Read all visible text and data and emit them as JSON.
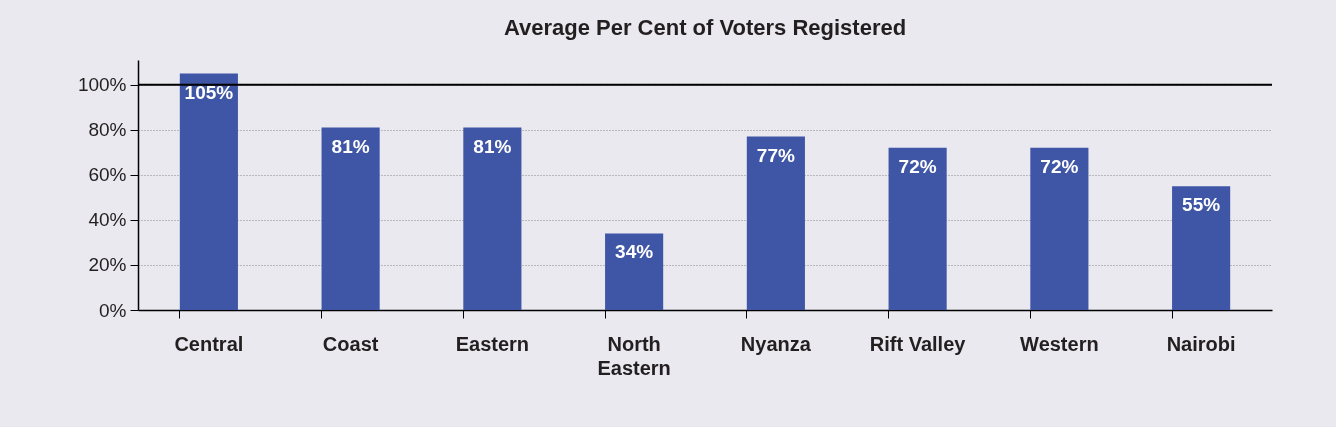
{
  "chart_data": {
    "type": "bar",
    "title": "Average Per Cent of Voters Registered",
    "categories": [
      "Central",
      "Coast",
      "Eastern",
      "North Eastern",
      "Nyanza",
      "Rift Valley",
      "Western",
      "Nairobi"
    ],
    "values": [
      105,
      81,
      81,
      34,
      77,
      72,
      72,
      55
    ],
    "value_labels": [
      "105%",
      "81%",
      "81%",
      "34%",
      "77%",
      "72%",
      "72%",
      "55%"
    ],
    "color": "#3f55a5",
    "ylim": [
      0,
      111
    ],
    "yticks": [
      {
        "value": 0,
        "label": "0%"
      },
      {
        "value": 20,
        "label": "20%"
      },
      {
        "value": 40,
        "label": "40%"
      },
      {
        "value": 60,
        "label": "60%"
      },
      {
        "value": 80,
        "label": "80%"
      },
      {
        "value": 100,
        "label": "100%"
      }
    ],
    "grid": "y",
    "ref_lines": [
      {
        "axis": "y",
        "value": 100,
        "color": "#000000",
        "line_style": "solid"
      }
    ]
  }
}
